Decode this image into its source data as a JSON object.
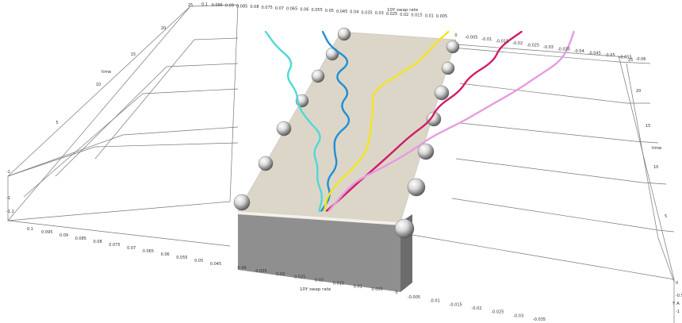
{
  "chart_data": {
    "type": "line",
    "axes": {
      "swap_rate_label": "10Y swap rate",
      "time_label": "time",
      "y_label": "Y A",
      "time_range": [
        0,
        25
      ],
      "swap_positive_range": [
        0,
        0.1
      ],
      "swap_negative_range": [
        -0.06,
        0
      ],
      "swap_negative_ticks_top": [
        "0",
        "-0.005",
        "-0.01",
        "-0.015",
        "-0.02",
        "-0.025",
        "-0.03",
        "-0.035",
        "-0.04",
        "-0.045",
        "-0.05",
        "-0.055",
        "-0.06"
      ],
      "swap_positive_ticks_top": [
        "0.1",
        "0.095",
        "0.09",
        "0.085",
        "0.08",
        "0.075",
        "0.07",
        "0.065",
        "0.06",
        "0.055",
        "0.05",
        "0.045",
        "0.04",
        "0.035",
        "0.03",
        "0.025",
        "0.02",
        "0.015",
        "0.01",
        "0.005"
      ],
      "swap_ticks_left": [
        "0.1",
        "0.095",
        "0.09",
        "0.085",
        "0.08",
        "0.075",
        "0.07",
        "0.065",
        "0.06",
        "0.055",
        "0.05",
        "0.045"
      ],
      "swap_ticks_bottom_center": [
        "0.04",
        "0.035",
        "0.03",
        "0.025",
        "0.02",
        "0.015",
        "0.01",
        "0.005",
        "0"
      ],
      "swap_ticks_bottom_right": [
        "-0.005",
        "-0.01",
        "-0.015",
        "-0.02",
        "-0.025",
        "-0.03",
        "-0.035"
      ],
      "time_ticks_left": [
        "25",
        "20",
        "15",
        "10",
        "5"
      ],
      "time_ticks_right": [
        "25",
        "20",
        "15",
        "10",
        "5"
      ],
      "y_ticks_left": [
        "-1",
        "-1",
        "-1.2"
      ],
      "y_ticks_right": [
        "0",
        "-0.5",
        "-1"
      ]
    },
    "series": [
      {
        "color": "#4fd8d8",
        "points": [
          [
            0.025,
            1
          ],
          [
            0.03,
            3
          ],
          [
            0.045,
            5
          ],
          [
            0.05,
            7
          ],
          [
            0.06,
            9
          ],
          [
            0.055,
            11
          ],
          [
            0.07,
            13
          ],
          [
            0.08,
            15
          ],
          [
            0.082,
            17
          ],
          [
            0.09,
            19
          ],
          [
            0.085,
            21
          ],
          [
            0.095,
            23
          ],
          [
            0.1,
            25
          ]
        ]
      },
      {
        "color": "#1f8fd6",
        "points": [
          [
            0.022,
            1
          ],
          [
            0.02,
            3
          ],
          [
            0.035,
            5
          ],
          [
            0.03,
            7
          ],
          [
            0.04,
            9
          ],
          [
            0.045,
            11
          ],
          [
            0.035,
            13
          ],
          [
            0.05,
            15
          ],
          [
            0.045,
            17
          ],
          [
            0.06,
            19
          ],
          [
            0.05,
            21
          ],
          [
            0.065,
            23
          ],
          [
            0.07,
            25
          ]
        ]
      },
      {
        "color": "#f4e41f",
        "points": [
          [
            0.018,
            1
          ],
          [
            0.025,
            3
          ],
          [
            0.02,
            5
          ],
          [
            0.012,
            7
          ],
          [
            0.01,
            9
          ],
          [
            0.015,
            11
          ],
          [
            0.02,
            13
          ],
          [
            0.025,
            15
          ],
          [
            0.03,
            17
          ],
          [
            0.02,
            19
          ],
          [
            0.01,
            21
          ],
          [
            0.008,
            23
          ],
          [
            0.004,
            25
          ]
        ]
      },
      {
        "color": "#d01b6a",
        "points": [
          [
            0.015,
            1
          ],
          [
            0.005,
            3
          ],
          [
            -0.002,
            5
          ],
          [
            -0.008,
            7
          ],
          [
            -0.012,
            9
          ],
          [
            -0.015,
            11
          ],
          [
            -0.02,
            13
          ],
          [
            -0.017,
            15
          ],
          [
            -0.022,
            17
          ],
          [
            -0.02,
            19
          ],
          [
            -0.025,
            21
          ],
          [
            -0.022,
            23
          ],
          [
            -0.025,
            25
          ]
        ]
      },
      {
        "color": "#e79be0",
        "points": [
          [
            0.012,
            1
          ],
          [
            0.008,
            3
          ],
          [
            0.002,
            5
          ],
          [
            -0.015,
            7
          ],
          [
            -0.025,
            9
          ],
          [
            -0.03,
            11
          ],
          [
            -0.04,
            13
          ],
          [
            -0.045,
            15
          ],
          [
            -0.05,
            17
          ],
          [
            -0.052,
            19
          ],
          [
            -0.054,
            21
          ],
          [
            -0.05,
            23
          ],
          [
            -0.045,
            25
          ]
        ]
      }
    ],
    "grid": true,
    "legend": "none"
  }
}
